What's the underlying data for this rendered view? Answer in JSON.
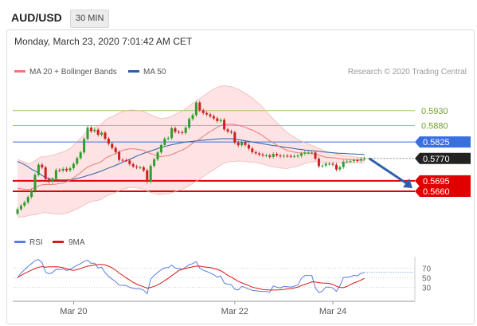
{
  "header": {
    "symbol": "AUD/USD",
    "timeframe": "30 MIN",
    "timestamp": "Monday, March 23, 2020 7:01:42 AM CET"
  },
  "colors": {
    "up": "#2e9e2e",
    "down": "#cc1f1f",
    "ma20": "#e87a7a",
    "ma50": "#2d5fa8",
    "band_fill": "#fde3e3",
    "resistance": "#9acd60",
    "pivot": "#3a6fe0",
    "support": "#e00000",
    "current": "#222222",
    "rsi": "#5a7de0",
    "rsi_ma": "#d91818"
  },
  "chart_data": {
    "type": "candlestick",
    "legend": {
      "ma20": "MA 20 + Bollinger Bands",
      "ma50": "MA 50"
    },
    "credit": "Research © 2020 Trading Central",
    "ylim": [
      0.554,
      0.602
    ],
    "levels": [
      {
        "value": 0.593,
        "label": "0.5930",
        "kind": "resistance"
      },
      {
        "value": 0.588,
        "label": "0.5880",
        "kind": "resistance"
      },
      {
        "value": 0.5825,
        "label": "0.5825",
        "kind": "pivot"
      },
      {
        "value": 0.577,
        "label": "0.5770",
        "kind": "current"
      },
      {
        "value": 0.5695,
        "label": "0.5695",
        "kind": "support"
      },
      {
        "value": 0.566,
        "label": "0.5660",
        "kind": "support"
      }
    ],
    "close": [
      0.56,
      0.5612,
      0.5623,
      0.5641,
      0.5662,
      0.5715,
      0.5749,
      0.574,
      0.5701,
      0.5692,
      0.5702,
      0.5731,
      0.5729,
      0.5735,
      0.573,
      0.5737,
      0.5752,
      0.5771,
      0.579,
      0.5835,
      0.5873,
      0.5861,
      0.5866,
      0.5849,
      0.5856,
      0.5836,
      0.5819,
      0.5805,
      0.5791,
      0.5765,
      0.5764,
      0.5763,
      0.5751,
      0.5743,
      0.574,
      0.574,
      0.573,
      0.5692,
      0.5745,
      0.5767,
      0.579,
      0.5815,
      0.5836,
      0.5838,
      0.5871,
      0.5859,
      0.5858,
      0.5855,
      0.5873,
      0.5902,
      0.5915,
      0.5957,
      0.5931,
      0.5922,
      0.5917,
      0.5911,
      0.5904,
      0.5895,
      0.5899,
      0.5867,
      0.586,
      0.5857,
      0.5823,
      0.5814,
      0.5825,
      0.5815,
      0.5803,
      0.5791,
      0.5787,
      0.5783,
      0.578,
      0.578,
      0.5775,
      0.5785,
      0.578,
      0.5777,
      0.5779,
      0.5778,
      0.5777,
      0.5778,
      0.5779,
      0.5786,
      0.579,
      0.579,
      0.579,
      0.5769,
      0.5744,
      0.5746,
      0.5752,
      0.5752,
      0.5749,
      0.5733,
      0.5741,
      0.5759,
      0.576,
      0.5761,
      0.5764,
      0.5763,
      0.5768,
      0.577
    ],
    "ma20": [
      0.567,
      0.5668,
      0.5667,
      0.5666,
      0.5668,
      0.5672,
      0.5678,
      0.5682,
      0.5683,
      0.5683,
      0.5683,
      0.5684,
      0.5686,
      0.5688,
      0.5692,
      0.5697,
      0.5705,
      0.5714,
      0.5722,
      0.5732,
      0.5741,
      0.5746,
      0.5751,
      0.5754,
      0.576,
      0.577,
      0.5776,
      0.5781,
      0.5786,
      0.5792,
      0.5797,
      0.58,
      0.5802,
      0.5802,
      0.5801,
      0.5799,
      0.5797,
      0.5791,
      0.5786,
      0.5782,
      0.5778,
      0.5776,
      0.5778,
      0.5779,
      0.5783,
      0.5788,
      0.5793,
      0.5798,
      0.5804,
      0.5812,
      0.5821,
      0.5828,
      0.5835,
      0.5844,
      0.5852,
      0.586,
      0.5867,
      0.5874,
      0.588,
      0.5884,
      0.5884,
      0.5885,
      0.5883,
      0.5881,
      0.5878,
      0.5874,
      0.5869,
      0.5865,
      0.5859,
      0.5853,
      0.5846,
      0.5837,
      0.5829,
      0.5822,
      0.5815,
      0.5808,
      0.5802,
      0.5796,
      0.5794,
      0.5791,
      0.5789,
      0.5788,
      0.5788,
      0.5787,
      0.5786,
      0.5784,
      0.5781,
      0.5777,
      0.5774,
      0.5773,
      0.5772,
      0.5771,
      0.5769,
      0.5768,
      0.5767,
      0.5766,
      0.5765,
      0.5765,
      0.5764,
      0.5764
    ],
    "bb_upper": [
      0.5767,
      0.5762,
      0.5758,
      0.5754,
      0.5755,
      0.5763,
      0.5771,
      0.5776,
      0.5777,
      0.5779,
      0.5781,
      0.5784,
      0.5788,
      0.5792,
      0.5797,
      0.5803,
      0.5814,
      0.5827,
      0.5837,
      0.585,
      0.5861,
      0.5867,
      0.5874,
      0.5878,
      0.5886,
      0.5898,
      0.5905,
      0.591,
      0.5916,
      0.5922,
      0.5927,
      0.593,
      0.5932,
      0.5932,
      0.5931,
      0.5929,
      0.5927,
      0.5921,
      0.5916,
      0.5911,
      0.5906,
      0.5903,
      0.5905,
      0.5906,
      0.5911,
      0.5917,
      0.5923,
      0.5929,
      0.5936,
      0.5945,
      0.5955,
      0.5962,
      0.597,
      0.5979,
      0.5987,
      0.5995,
      0.6002,
      0.6008,
      0.6012,
      0.6013,
      0.6012,
      0.601,
      0.6006,
      0.6001,
      0.5995,
      0.5988,
      0.598,
      0.5972,
      0.5962,
      0.5952,
      0.5941,
      0.5927,
      0.5914,
      0.5902,
      0.589,
      0.5878,
      0.5867,
      0.5856,
      0.5848,
      0.5841,
      0.5834,
      0.5828,
      0.5823,
      0.5818,
      0.5814,
      0.5809,
      0.5804,
      0.5798,
      0.5794,
      0.5791,
      0.5788,
      0.5786,
      0.5783,
      0.5781,
      0.5779,
      0.5777,
      0.5775,
      0.5774,
      0.5773,
      0.5772
    ],
    "bb_lower": [
      0.5573,
      0.5574,
      0.5576,
      0.5578,
      0.5581,
      0.5581,
      0.5585,
      0.5588,
      0.5589,
      0.5587,
      0.5585,
      0.5584,
      0.5584,
      0.5584,
      0.5587,
      0.5591,
      0.5596,
      0.5601,
      0.5607,
      0.5614,
      0.5621,
      0.5625,
      0.5628,
      0.563,
      0.5634,
      0.5642,
      0.5647,
      0.5652,
      0.5656,
      0.5662,
      0.5667,
      0.567,
      0.5672,
      0.5672,
      0.5671,
      0.5669,
      0.5667,
      0.5661,
      0.5656,
      0.5653,
      0.565,
      0.5649,
      0.5651,
      0.5652,
      0.5655,
      0.5659,
      0.5663,
      0.5667,
      0.5672,
      0.5679,
      0.5687,
      0.5694,
      0.57,
      0.5709,
      0.5717,
      0.5725,
      0.5732,
      0.574,
      0.5748,
      0.5755,
      0.5756,
      0.576,
      0.576,
      0.5761,
      0.5761,
      0.576,
      0.5758,
      0.5758,
      0.5756,
      0.5754,
      0.5751,
      0.5747,
      0.5744,
      0.5742,
      0.574,
      0.5738,
      0.5737,
      0.5736,
      0.574,
      0.5741,
      0.5744,
      0.5748,
      0.5753,
      0.5756,
      0.5758,
      0.5759,
      0.5758,
      0.5756,
      0.5754,
      0.5755,
      0.5756,
      0.5756,
      0.5755,
      0.5755,
      0.5755,
      0.5755,
      0.5755,
      0.5756,
      0.5755,
      0.5756
    ],
    "ma50": [
      0.576,
      0.5755,
      0.5749,
      0.5742,
      0.5734,
      0.5728,
      0.5721,
      0.5713,
      0.5706,
      0.5702,
      0.57,
      0.5699,
      0.5698,
      0.5698,
      0.5698,
      0.5699,
      0.57,
      0.5703,
      0.5706,
      0.5709,
      0.5713,
      0.5716,
      0.572,
      0.5724,
      0.5728,
      0.5733,
      0.5738,
      0.5742,
      0.5747,
      0.5752,
      0.5757,
      0.5762,
      0.5767,
      0.5772,
      0.5778,
      0.5782,
      0.5787,
      0.5791,
      0.5795,
      0.5799,
      0.5803,
      0.5807,
      0.581,
      0.5813,
      0.5816,
      0.5818,
      0.5821,
      0.5823,
      0.5825,
      0.5826,
      0.5827,
      0.5829,
      0.583,
      0.5831,
      0.5832,
      0.5833,
      0.5834,
      0.5835,
      0.5836,
      0.5836,
      0.5836,
      0.5836,
      0.5834,
      0.5833,
      0.5831,
      0.5829,
      0.5827,
      0.5825,
      0.5823,
      0.5821,
      0.5819,
      0.5817,
      0.5815,
      0.5813,
      0.5812,
      0.581,
      0.5808,
      0.5806,
      0.5805,
      0.5803,
      0.5801,
      0.58,
      0.5798,
      0.5797,
      0.5796,
      0.5795,
      0.5794,
      0.5792,
      0.5791,
      0.579,
      0.5789,
      0.5788,
      0.5787,
      0.5787,
      0.5786,
      0.5785,
      0.5785,
      0.5784,
      0.5784,
      0.5783
    ],
    "arrow": {
      "from": 0.577,
      "to": 0.566
    },
    "rsi": {
      "legend": {
        "rsi": "RSI",
        "ma": "9MA"
      },
      "ticks": [
        "70",
        "50",
        "30"
      ],
      "levels": [
        70,
        50,
        30
      ],
      "ylim": [
        0,
        100
      ]
    },
    "x_ticks": [
      {
        "label": "Mar 20",
        "index": 16
      },
      {
        "label": "Mar 22",
        "index": 62
      },
      {
        "label": "Mar 24",
        "index": 90
      }
    ]
  }
}
